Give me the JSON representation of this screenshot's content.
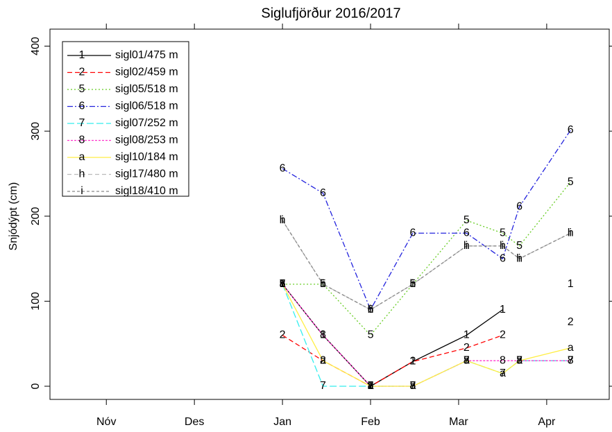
{
  "chart_data": {
    "type": "line",
    "title": "Siglufjörður 2016/2017",
    "ylabel": "Snjódýpt (cm)",
    "x": [
      1.0,
      1.46,
      2.0,
      2.48,
      3.09,
      3.5,
      3.69,
      4.27
    ],
    "xlim": [
      -1.64,
      4.71
    ],
    "xticks": [
      {
        "value": -1,
        "label": "Nóv"
      },
      {
        "value": 0,
        "label": "Des"
      },
      {
        "value": 1,
        "label": "Jan"
      },
      {
        "value": 2,
        "label": "Feb"
      },
      {
        "value": 3,
        "label": "Mar"
      },
      {
        "value": 4,
        "label": "Apr"
      }
    ],
    "ylim": [
      -15.5,
      420
    ],
    "yticks": [
      0,
      100,
      200,
      300,
      400
    ],
    "grid": false,
    "legend": "upper left",
    "series": [
      {
        "name": "sigl01/475 m",
        "symbol": "1",
        "color": "#000000",
        "values": [
          120,
          60,
          0,
          29,
          60,
          90,
          null,
          120
        ]
      },
      {
        "name": "sigl02/459 m",
        "symbol": "2",
        "color": "#ff0000",
        "values": [
          60,
          30,
          0,
          29,
          45,
          60,
          null,
          75
        ]
      },
      {
        "name": "sigl05/518 m",
        "symbol": "5",
        "color": "#66cc22",
        "values": [
          120,
          120,
          60,
          120,
          195,
          180,
          165,
          240
        ]
      },
      {
        "name": "sigl06/518 m",
        "symbol": "6",
        "color": "#2222dd",
        "values": [
          256,
          227,
          90,
          180,
          180,
          150,
          211,
          301
        ]
      },
      {
        "name": "sigl07/252 m",
        "symbol": "7",
        "color": "#33eeee",
        "values": [
          120,
          0,
          0,
          0,
          30,
          15,
          30,
          30
        ]
      },
      {
        "name": "sigl08/253 m",
        "symbol": "8",
        "color": "#ff33cc",
        "values": [
          120,
          60,
          0,
          0,
          30,
          30,
          30,
          30
        ]
      },
      {
        "name": "sigl10/184 m",
        "symbol": "a",
        "color": "#ffee44",
        "values": [
          120,
          30,
          0,
          0,
          30,
          15,
          30,
          45
        ]
      },
      {
        "name": "sigl17/480 m",
        "symbol": "h",
        "color": "#bbbbbb",
        "values": [
          195,
          120,
          90,
          120,
          165,
          165,
          150,
          180
        ]
      },
      {
        "name": "sigl18/410 m",
        "symbol": "i",
        "color": "#888888",
        "values": [
          195,
          120,
          90,
          120,
          165,
          165,
          150,
          180
        ]
      }
    ]
  }
}
